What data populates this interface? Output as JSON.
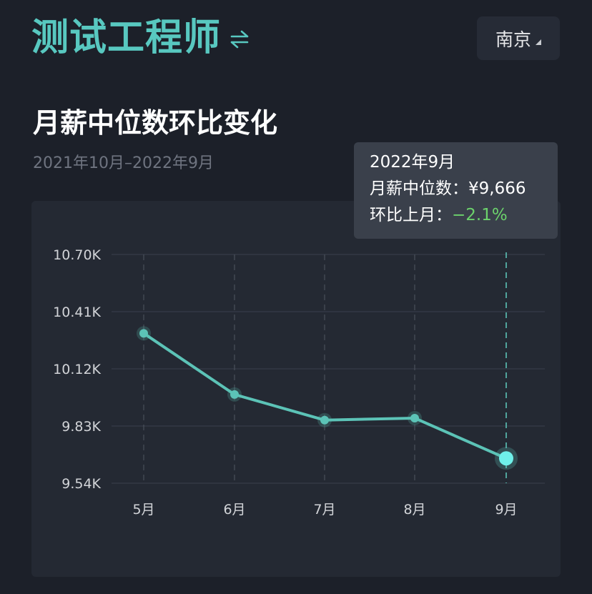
{
  "header": {
    "title": "测试工程师",
    "swap_icon": "swap-arrows-icon",
    "city": "南京"
  },
  "section": {
    "title": "月薪中位数环比变化",
    "date_range": "2021年10月–2022年9月"
  },
  "tooltip": {
    "month": "2022年9月",
    "median_label": "月薪中位数：",
    "median_value": "¥9,666",
    "mom_label": "环比上月：",
    "mom_value": "−2.1%"
  },
  "colors": {
    "accent": "#58c8c0",
    "line": "#5cc3b7",
    "highlight_point": "#6ff0ea",
    "positive_change": "#6cd26c",
    "background": "#1c2029",
    "card": "#242933"
  },
  "chart_data": {
    "type": "line",
    "x": [
      "5月",
      "6月",
      "7月",
      "8月",
      "9月"
    ],
    "y_unit": "K",
    "yticks": [
      "10.70K",
      "10.41K",
      "10.12K",
      "9.83K",
      "9.54K"
    ],
    "ylim": [
      9.54,
      10.7
    ],
    "series": [
      {
        "values": [
          10.3,
          9.99,
          9.86,
          9.87,
          9.666
        ]
      }
    ],
    "line_enters_from_left_value": 10.3,
    "highlighted_index": 4,
    "grid": true
  }
}
